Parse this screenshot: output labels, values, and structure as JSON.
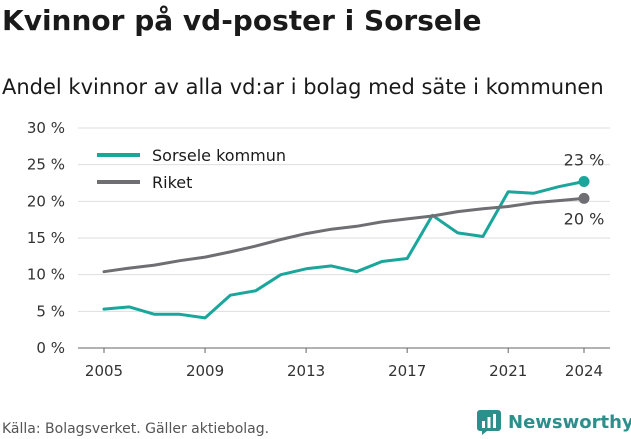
{
  "title": "Kvinnor på vd-poster i Sorsele",
  "subtitle": "Andel kvinnor av alla vd:ar i bolag med säte i kommunen",
  "source": "Källa: Bolagsverket. Gäller aktiebolag.",
  "brand": "Newsworthy",
  "colors": {
    "sorsele": "#1aa69b",
    "riket": "#6f6f73",
    "brand": "#2c8f8c"
  },
  "chart_data": {
    "type": "line",
    "title": "Kvinnor på vd-poster i Sorsele",
    "subtitle": "Andel kvinnor av alla vd:ar i bolag med säte i kommunen",
    "x": [
      2005,
      2006,
      2007,
      2008,
      2009,
      2010,
      2011,
      2012,
      2013,
      2014,
      2015,
      2016,
      2017,
      2018,
      2019,
      2020,
      2021,
      2022,
      2023,
      2024
    ],
    "xticks": [
      "2005",
      "2009",
      "2013",
      "2017",
      "2021",
      "2024"
    ],
    "yticks": [
      "0 %",
      "5 %",
      "10 %",
      "15 %",
      "20 %",
      "25 %",
      "30 %"
    ],
    "ylim": [
      0,
      30
    ],
    "grid": true,
    "legend": "top-left",
    "series": [
      {
        "name": "Sorsele kommun",
        "color": "#1aa69b",
        "end_label": "23 %",
        "values": [
          5.3,
          5.6,
          4.6,
          4.6,
          4.1,
          7.2,
          7.8,
          10.0,
          10.8,
          11.2,
          10.4,
          11.8,
          12.2,
          18.1,
          15.7,
          15.2,
          21.3,
          21.1,
          22.0,
          22.7
        ]
      },
      {
        "name": "Riket",
        "color": "#6f6f73",
        "end_label": "20 %",
        "values": [
          10.4,
          10.9,
          11.3,
          11.9,
          12.4,
          13.1,
          13.9,
          14.8,
          15.6,
          16.2,
          16.6,
          17.2,
          17.6,
          18.0,
          18.6,
          19.0,
          19.3,
          19.8,
          20.1,
          20.4
        ]
      }
    ]
  }
}
